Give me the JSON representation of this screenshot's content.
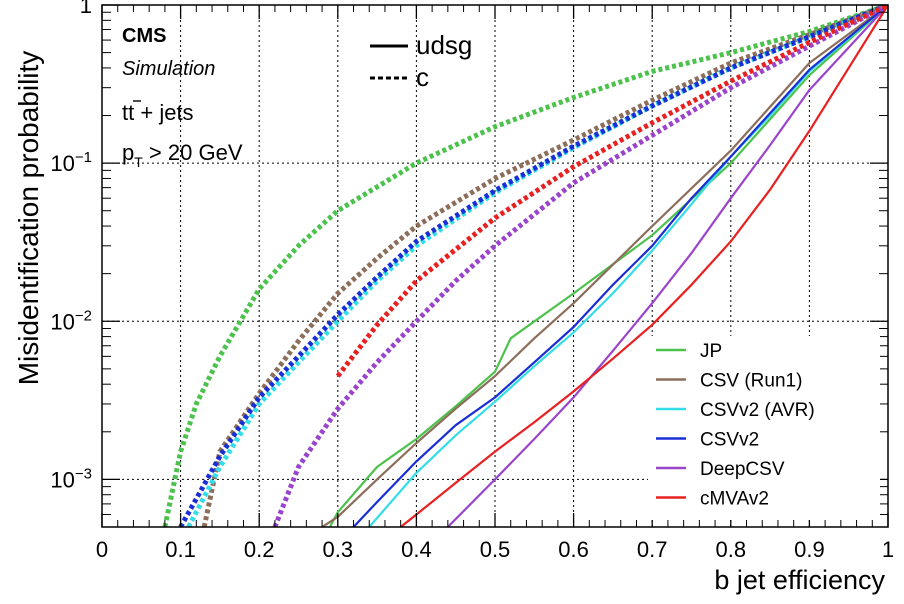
{
  "chart_data": {
    "type": "line",
    "xlabel": "b jet efficiency",
    "ylabel": "Misidentification probability",
    "xlim": [
      0,
      1
    ],
    "ylim": [
      0.0005,
      1
    ],
    "yscale": "log",
    "grid": true,
    "xticks": [
      "0",
      "0.1",
      "0.2",
      "0.3",
      "0.4",
      "0.5",
      "0.6",
      "0.7",
      "0.8",
      "0.9",
      "1"
    ],
    "yticks": [
      {
        "value": 0.001,
        "base": "10",
        "exp": "−3"
      },
      {
        "value": 0.01,
        "base": "10",
        "exp": "−2"
      },
      {
        "value": 0.1,
        "base": "10",
        "exp": "−1"
      },
      {
        "value": 1,
        "base": "1",
        "exp": ""
      }
    ],
    "annotations": {
      "experiment": "CMS",
      "status": "Simulation",
      "process_prefix": "t",
      "process_tbar": "t",
      "process_suffix": " + jets",
      "cut_prefix": "p",
      "cut_sub": "T",
      "cut_suffix": " > 20 GeV"
    },
    "style_legend": [
      {
        "label": "udsg",
        "dash": "solid"
      },
      {
        "label": "c",
        "dash": "dashed"
      }
    ],
    "legend_position": "bottom-right",
    "series": [
      {
        "name": "JP",
        "color": "#4cc24c",
        "udsg": [
          [
            0.29,
            0.0005
          ],
          [
            0.3,
            0.00062
          ],
          [
            0.35,
            0.0012
          ],
          [
            0.4,
            0.0018
          ],
          [
            0.45,
            0.0029
          ],
          [
            0.5,
            0.0048
          ],
          [
            0.52,
            0.0078
          ],
          [
            0.6,
            0.015
          ],
          [
            0.7,
            0.035
          ],
          [
            0.8,
            0.1
          ],
          [
            0.9,
            0.36
          ],
          [
            1,
            1
          ]
        ],
        "c": [
          [
            0.08,
            0.0005
          ],
          [
            0.1,
            0.0015
          ],
          [
            0.12,
            0.003
          ],
          [
            0.15,
            0.006
          ],
          [
            0.2,
            0.016
          ],
          [
            0.25,
            0.03
          ],
          [
            0.3,
            0.05
          ],
          [
            0.4,
            0.1
          ],
          [
            0.5,
            0.17
          ],
          [
            0.6,
            0.26
          ],
          [
            0.7,
            0.38
          ],
          [
            0.8,
            0.5
          ],
          [
            0.9,
            0.68
          ],
          [
            1,
            1
          ]
        ]
      },
      {
        "name": "CSV (Run1)",
        "color": "#8c6e5a",
        "udsg": [
          [
            0.28,
            0.0005
          ],
          [
            0.3,
            0.00058
          ],
          [
            0.35,
            0.001
          ],
          [
            0.4,
            0.0017
          ],
          [
            0.45,
            0.0028
          ],
          [
            0.5,
            0.0045
          ],
          [
            0.55,
            0.0078
          ],
          [
            0.6,
            0.013
          ],
          [
            0.7,
            0.04
          ],
          [
            0.8,
            0.12
          ],
          [
            0.9,
            0.43
          ],
          [
            1,
            1
          ]
        ],
        "c": [
          [
            0.13,
            0.0005
          ],
          [
            0.15,
            0.0015
          ],
          [
            0.2,
            0.0035
          ],
          [
            0.25,
            0.0075
          ],
          [
            0.3,
            0.015
          ],
          [
            0.35,
            0.025
          ],
          [
            0.4,
            0.04
          ],
          [
            0.5,
            0.08
          ],
          [
            0.6,
            0.14
          ],
          [
            0.7,
            0.25
          ],
          [
            0.8,
            0.43
          ],
          [
            0.9,
            0.65
          ],
          [
            1,
            1
          ]
        ]
      },
      {
        "name": "CSVv2 (AVR)",
        "color": "#33dde8",
        "udsg": [
          [
            0.34,
            0.0005
          ],
          [
            0.4,
            0.0011
          ],
          [
            0.45,
            0.0019
          ],
          [
            0.5,
            0.0031
          ],
          [
            0.55,
            0.0052
          ],
          [
            0.6,
            0.0085
          ],
          [
            0.65,
            0.015
          ],
          [
            0.7,
            0.028
          ],
          [
            0.75,
            0.055
          ],
          [
            0.8,
            0.11
          ],
          [
            0.85,
            0.2
          ],
          [
            0.9,
            0.38
          ],
          [
            1,
            1
          ]
        ],
        "c": [
          [
            0.11,
            0.0005
          ],
          [
            0.15,
            0.0012
          ],
          [
            0.2,
            0.003
          ],
          [
            0.25,
            0.0055
          ],
          [
            0.3,
            0.01
          ],
          [
            0.35,
            0.018
          ],
          [
            0.4,
            0.03
          ],
          [
            0.5,
            0.065
          ],
          [
            0.6,
            0.125
          ],
          [
            0.7,
            0.23
          ],
          [
            0.8,
            0.4
          ],
          [
            0.9,
            0.63
          ],
          [
            1,
            1
          ]
        ]
      },
      {
        "name": "CSVv2",
        "color": "#1a2ed6",
        "udsg": [
          [
            0.32,
            0.0005
          ],
          [
            0.35,
            0.00072
          ],
          [
            0.4,
            0.0013
          ],
          [
            0.45,
            0.0022
          ],
          [
            0.5,
            0.0033
          ],
          [
            0.55,
            0.0055
          ],
          [
            0.6,
            0.0092
          ],
          [
            0.65,
            0.017
          ],
          [
            0.7,
            0.03
          ],
          [
            0.75,
            0.06
          ],
          [
            0.8,
            0.11
          ],
          [
            0.9,
            0.39
          ],
          [
            1,
            1
          ]
        ],
        "c": [
          [
            0.1,
            0.0005
          ],
          [
            0.15,
            0.0014
          ],
          [
            0.2,
            0.0033
          ],
          [
            0.25,
            0.006
          ],
          [
            0.3,
            0.011
          ],
          [
            0.35,
            0.019
          ],
          [
            0.4,
            0.032
          ],
          [
            0.5,
            0.067
          ],
          [
            0.6,
            0.128
          ],
          [
            0.7,
            0.23
          ],
          [
            0.8,
            0.4
          ],
          [
            0.9,
            0.63
          ],
          [
            1,
            1
          ]
        ]
      },
      {
        "name": "DeepCSV",
        "color": "#9a44cc",
        "udsg": [
          [
            0.44,
            0.0005
          ],
          [
            0.5,
            0.001
          ],
          [
            0.55,
            0.0018
          ],
          [
            0.6,
            0.0033
          ],
          [
            0.65,
            0.0065
          ],
          [
            0.7,
            0.013
          ],
          [
            0.75,
            0.027
          ],
          [
            0.8,
            0.06
          ],
          [
            0.85,
            0.13
          ],
          [
            0.9,
            0.29
          ],
          [
            1,
            1
          ]
        ],
        "c": [
          [
            0.22,
            0.0005
          ],
          [
            0.25,
            0.0012
          ],
          [
            0.3,
            0.0028
          ],
          [
            0.35,
            0.0055
          ],
          [
            0.4,
            0.01
          ],
          [
            0.45,
            0.018
          ],
          [
            0.5,
            0.03
          ],
          [
            0.6,
            0.075
          ],
          [
            0.7,
            0.15
          ],
          [
            0.8,
            0.3
          ],
          [
            0.9,
            0.55
          ],
          [
            1,
            1
          ]
        ]
      },
      {
        "name": "cMVAv2",
        "color": "#e82020",
        "udsg": [
          [
            0.38,
            0.0005
          ],
          [
            0.4,
            0.0006
          ],
          [
            0.45,
            0.00095
          ],
          [
            0.5,
            0.0015
          ],
          [
            0.55,
            0.0023
          ],
          [
            0.6,
            0.0036
          ],
          [
            0.65,
            0.0058
          ],
          [
            0.7,
            0.0095
          ],
          [
            0.75,
            0.017
          ],
          [
            0.8,
            0.032
          ],
          [
            0.85,
            0.068
          ],
          [
            0.9,
            0.16
          ],
          [
            0.95,
            0.4
          ],
          [
            1,
            1
          ]
        ],
        "c": [
          [
            0.3,
            0.0045
          ],
          [
            0.35,
            0.0095
          ],
          [
            0.4,
            0.018
          ],
          [
            0.5,
            0.045
          ],
          [
            0.6,
            0.095
          ],
          [
            0.7,
            0.18
          ],
          [
            0.8,
            0.33
          ],
          [
            0.9,
            0.58
          ],
          [
            1,
            1
          ]
        ]
      }
    ]
  }
}
